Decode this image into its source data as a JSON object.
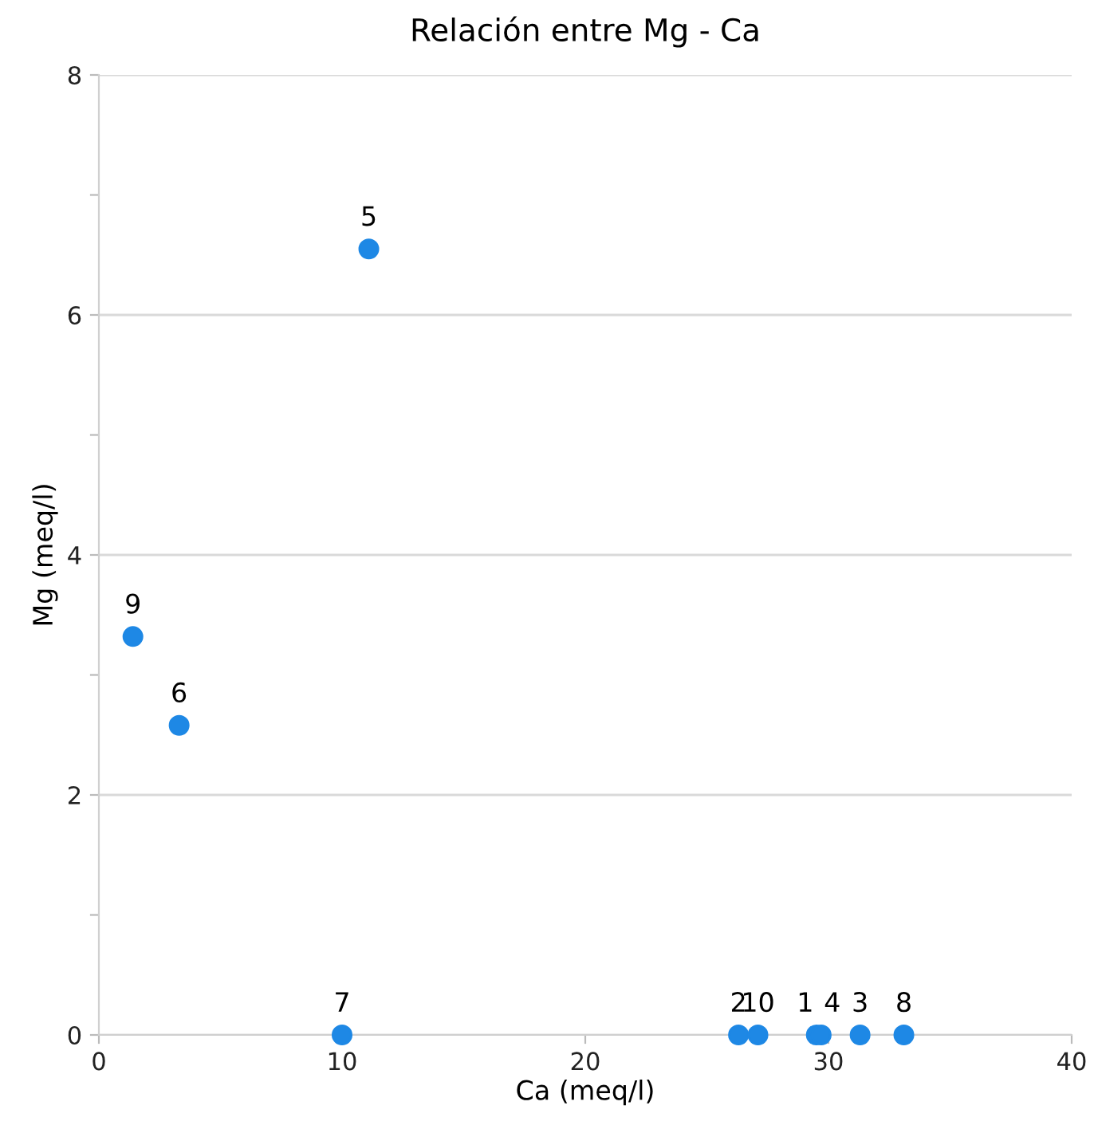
{
  "chart_data": {
    "type": "scatter",
    "title": "Relación entre Mg - Ca",
    "xlabel": "Ca (meq/l)",
    "ylabel": "Mg (meq/l)",
    "x": [
      29.5,
      26.3,
      31.3,
      29.7,
      11.1,
      3.3,
      10.0,
      33.1,
      1.4,
      27.1
    ],
    "series": [
      {
        "color": "#1e88e5",
        "values": [
          0,
          0,
          0,
          0,
          6.55,
          2.58,
          0,
          0,
          3.32,
          0
        ]
      }
    ],
    "xlim": [
      0,
      40
    ],
    "ylim": [
      0,
      8
    ],
    "xticks": [
      0,
      10,
      20,
      30,
      40
    ],
    "yticks": [
      0,
      {
        "value": 1,
        "label": null
      },
      2,
      {
        "value": 3,
        "label": null
      },
      4,
      {
        "value": 5,
        "label": null
      },
      6,
      {
        "value": 7,
        "label": null
      },
      8
    ],
    "grid": "y",
    "marker": "circle",
    "annotations": [
      {
        "text": "1",
        "x": 29.5,
        "y": 0
      },
      {
        "text": "2",
        "x": 26.3,
        "y": 0
      },
      {
        "text": "3",
        "x": 31.3,
        "y": 0
      },
      {
        "text": "4",
        "x": 29.7,
        "y": 0
      },
      {
        "text": "5",
        "x": 11.1,
        "y": 6.55
      },
      {
        "text": "6",
        "x": 3.3,
        "y": 2.58
      },
      {
        "text": "7",
        "x": 10.0,
        "y": 0
      },
      {
        "text": "8",
        "x": 33.1,
        "y": 0
      },
      {
        "text": "9",
        "x": 1.4,
        "y": 3.32
      },
      {
        "text": "10",
        "x": 27.1,
        "y": 0
      }
    ]
  }
}
